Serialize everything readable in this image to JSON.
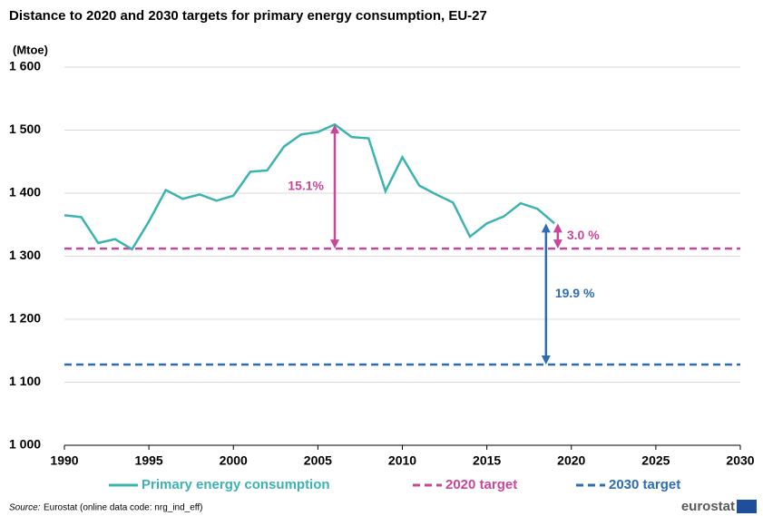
{
  "chart_data": {
    "type": "line",
    "title": "Distance to 2020 and 2030 targets for primary energy consumption, EU-27",
    "y_label": "(Mtoe)",
    "x": [
      1990,
      1991,
      1992,
      1993,
      1994,
      1995,
      1996,
      1997,
      1998,
      1999,
      2000,
      2001,
      2002,
      2003,
      2004,
      2005,
      2006,
      2007,
      2008,
      2009,
      2010,
      2011,
      2012,
      2013,
      2014,
      2015,
      2016,
      2017,
      2018,
      2019
    ],
    "series": [
      {
        "name": "Primary energy consumption",
        "color": "#3bb3b0",
        "values": [
          1365,
          1362,
          1321,
          1327,
          1311,
          1355,
          1405,
          1391,
          1398,
          1388,
          1396,
          1434,
          1436,
          1474,
          1493,
          1497,
          1509,
          1489,
          1487,
          1403,
          1457,
          1412,
          1398,
          1385,
          1331,
          1352,
          1363,
          1384,
          1375,
          1352
        ]
      }
    ],
    "reference_lines": [
      {
        "name": "2020 target",
        "color": "#c9479a",
        "value": 1312
      },
      {
        "name": "2030 target",
        "color": "#2e6db4",
        "value": 1128
      }
    ],
    "annotations": [
      {
        "text": "15.1%",
        "x": 2006,
        "from": 1509,
        "to": 1312,
        "color": "#c9479a"
      },
      {
        "text": "3.0 %",
        "x": 2019.2,
        "from": 1352,
        "to": 1312,
        "color": "#c9479a"
      },
      {
        "text": "19.9 %",
        "x": 2018.5,
        "from": 1352,
        "to": 1128,
        "color": "#2e6db4"
      }
    ],
    "xlim": [
      1990,
      2030
    ],
    "xticks": [
      1990,
      1995,
      2000,
      2005,
      2010,
      2015,
      2020,
      2025,
      2030
    ],
    "ylim": [
      1000,
      1600
    ],
    "yticks": [
      {
        "value": 1000,
        "label": "1 000"
      },
      {
        "value": 1100,
        "label": "1 100"
      },
      {
        "value": 1200,
        "label": "1 200"
      },
      {
        "value": 1300,
        "label": "1 300"
      },
      {
        "value": 1400,
        "label": "1 400"
      },
      {
        "value": 1500,
        "label": "1 500"
      },
      {
        "value": 1600,
        "label": "1 600"
      }
    ],
    "grid": true,
    "source_prefix": "Source:",
    "source": "Eurostat (online data code: nrg_ind_eff)",
    "logo": "eurostat"
  }
}
